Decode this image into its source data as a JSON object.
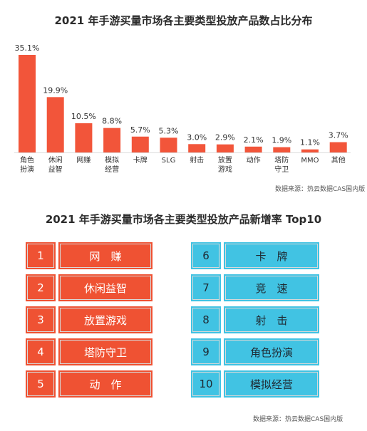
{
  "chart_data": {
    "type": "bar",
    "title": "2021 年手游买量市场各主要类型投放产品数占比分布",
    "categories": [
      [
        "角色",
        "扮演"
      ],
      [
        "休闲",
        "益智"
      ],
      [
        "网赚"
      ],
      [
        "模拟",
        "经营"
      ],
      [
        "卡牌"
      ],
      [
        "SLG"
      ],
      [
        "射击"
      ],
      [
        "放置",
        "游戏"
      ],
      [
        "动作"
      ],
      [
        "塔防",
        "守卫"
      ],
      [
        "MMO"
      ],
      [
        "其他"
      ]
    ],
    "values": [
      35.1,
      19.9,
      10.5,
      8.8,
      5.7,
      5.3,
      3.0,
      2.9,
      2.1,
      1.9,
      1.1,
      3.7
    ],
    "value_labels": [
      "35.1%",
      "19.9%",
      "10.5%",
      "8.8%",
      "5.7%",
      "5.3%",
      "3.0%",
      "2.9%",
      "2.1%",
      "1.9%",
      "1.1%",
      "3.7%"
    ],
    "bar_color": "#f2553a",
    "grid": false,
    "source": "数据来源：热云数据CAS国内版"
  },
  "ranking": {
    "title": "2021 年手游买量市场各主要类型投放产品新增率 Top10",
    "colors": {
      "left": "#ef5233",
      "right": "#41c3e3"
    },
    "left": [
      {
        "rank": "1",
        "name": "网　赚"
      },
      {
        "rank": "2",
        "name": "休闲益智"
      },
      {
        "rank": "3",
        "name": "放置游戏"
      },
      {
        "rank": "4",
        "name": "塔防守卫"
      },
      {
        "rank": "5",
        "name": "动　作"
      }
    ],
    "right": [
      {
        "rank": "6",
        "name": "卡　牌"
      },
      {
        "rank": "7",
        "name": "竞　速"
      },
      {
        "rank": "8",
        "name": "射　击"
      },
      {
        "rank": "9",
        "name": "角色扮演"
      },
      {
        "rank": "10",
        "name": "模拟经营"
      }
    ],
    "source": "数据来源：热云数据CAS国内版"
  }
}
